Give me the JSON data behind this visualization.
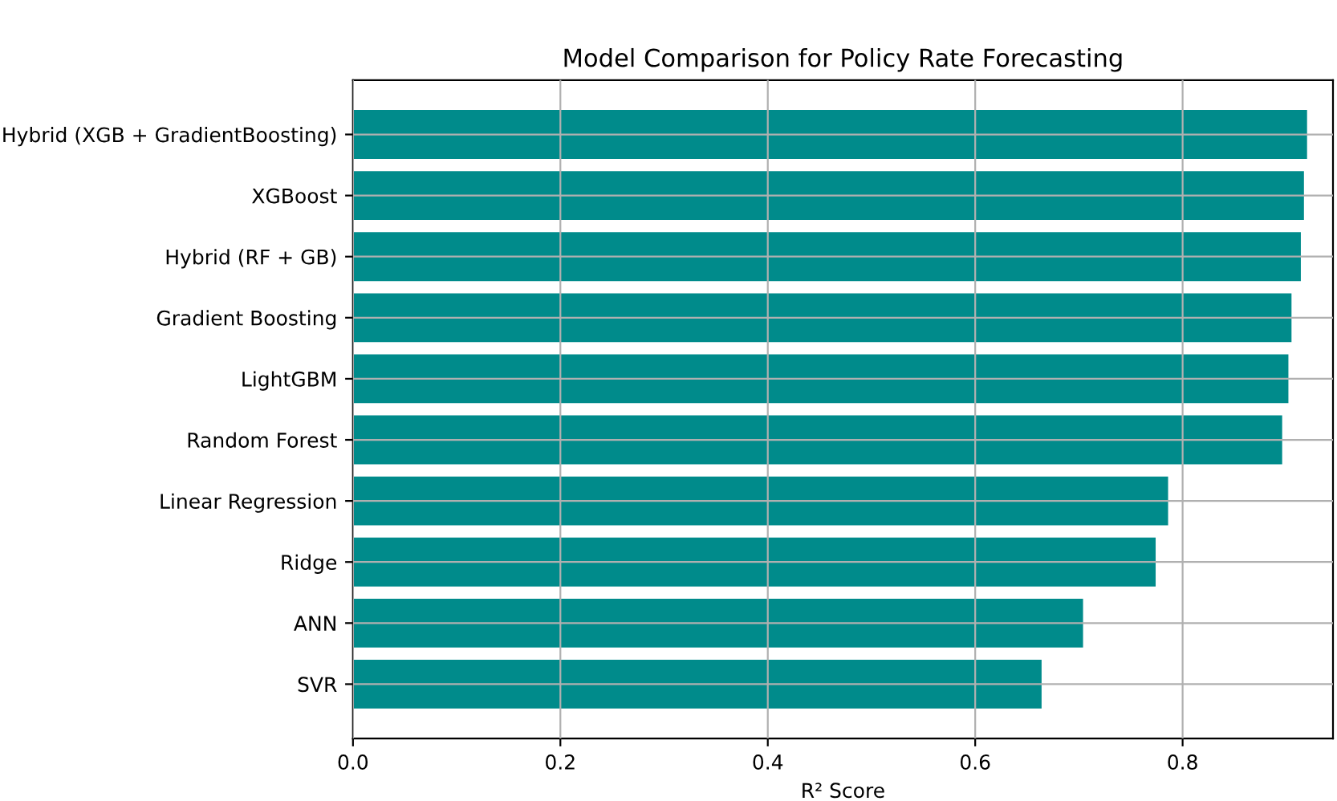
{
  "chart_data": {
    "type": "bar",
    "orientation": "horizontal",
    "title": "Model Comparison for Policy Rate Forecasting",
    "xlabel": "R² Score",
    "categories": [
      "Hybrid (XGB + GradientBoosting)",
      "XGBoost",
      "Hybrid (RF + GB)",
      "Gradient Boosting",
      "LightGBM",
      "Random Forest",
      "Linear Regression",
      "Ridge",
      "ANN",
      "SVR"
    ],
    "values": [
      0.92,
      0.917,
      0.914,
      0.905,
      0.902,
      0.896,
      0.786,
      0.774,
      0.704,
      0.664
    ],
    "color": "#008b8b",
    "xlim": [
      0,
      0.945
    ],
    "xticks": [
      {
        "value": 0,
        "label": "0.0"
      },
      {
        "value": 0.2,
        "label": "0.2"
      },
      {
        "value": 0.4,
        "label": "0.4"
      },
      {
        "value": 0.6,
        "label": "0.6"
      },
      {
        "value": 0.8,
        "label": "0.8"
      }
    ],
    "grid": true
  }
}
